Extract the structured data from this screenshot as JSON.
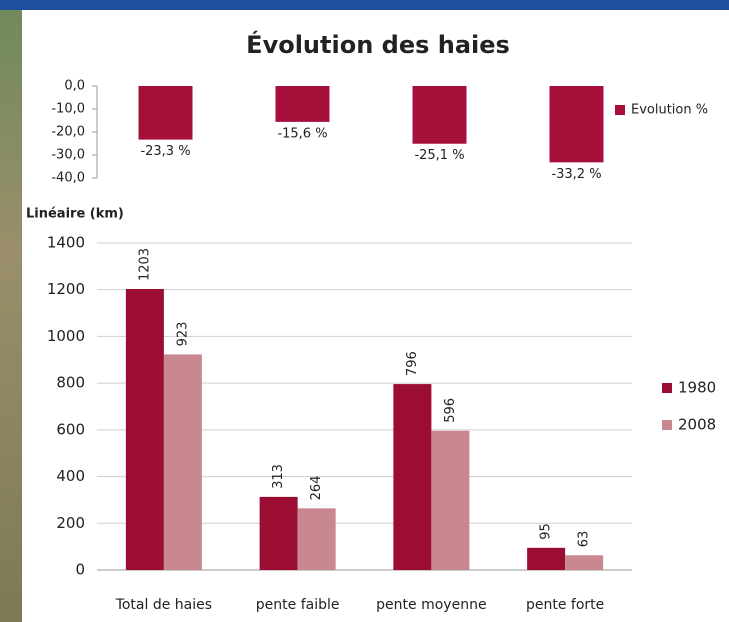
{
  "chart_data": [
    {
      "type": "bar",
      "title": "Évolution des haies",
      "categories": [
        null,
        null,
        null,
        null
      ],
      "series": [
        {
          "name": "Evolution %",
          "color": "#a50f3a",
          "values": [
            -23.3,
            -15.6,
            -25.1,
            -33.2
          ],
          "value_labels": [
            "-23,3 %",
            "-15,6 %",
            "-25,1 %",
            "-33,2 %"
          ]
        }
      ],
      "ylim": [
        -40,
        0
      ],
      "yticks": [
        {
          "value": 0,
          "label": "0,0"
        },
        {
          "value": -10,
          "label": "-10,0"
        },
        {
          "value": -20,
          "label": "-20,0"
        },
        {
          "value": -30,
          "label": "-30,0"
        },
        {
          "value": -40,
          "label": "-40,0"
        }
      ],
      "grid": false,
      "legend": "right"
    },
    {
      "type": "bar",
      "ylabel": "Linéaire (km)",
      "categories": [
        "Total de haies",
        "pente faible",
        "pente moyenne",
        "pente forte"
      ],
      "series": [
        {
          "name": "1980",
          "color": "#9b0d33",
          "values": [
            1203,
            313,
            796,
            95
          ]
        },
        {
          "name": "2008",
          "color": "#c98890",
          "values": [
            923,
            264,
            596,
            63
          ]
        }
      ],
      "ylim": [
        0,
        1400
      ],
      "yticks": [
        0,
        200,
        400,
        600,
        800,
        1000,
        1200,
        1400
      ],
      "grid": true,
      "legend": "right"
    }
  ]
}
